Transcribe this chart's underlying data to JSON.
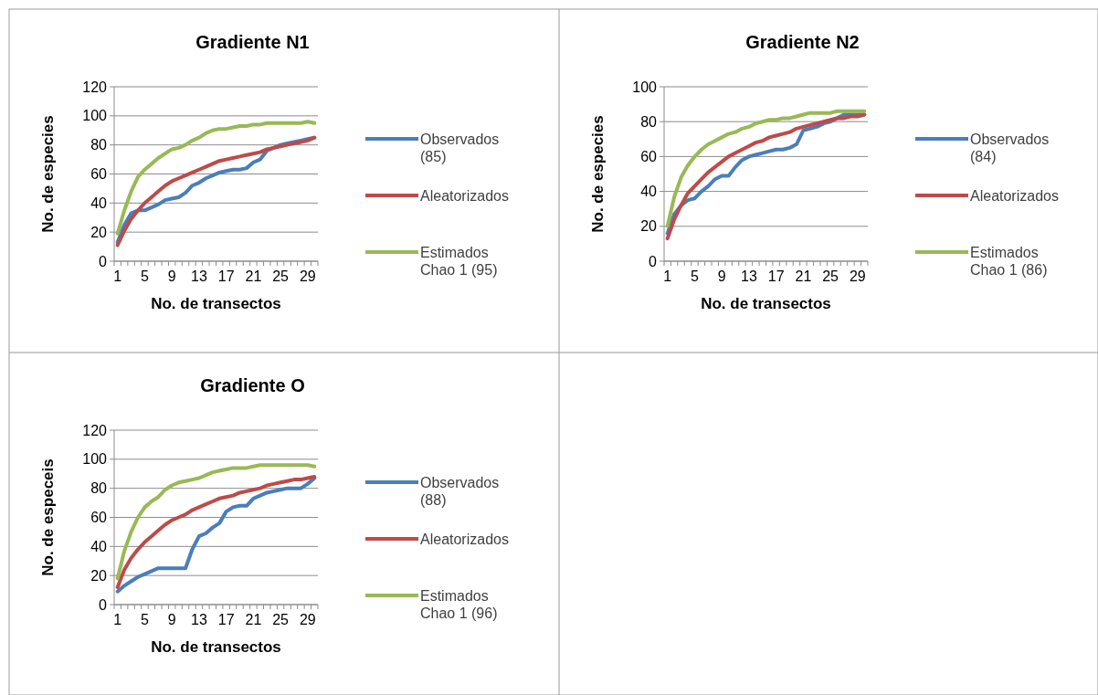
{
  "chart_data": [
    {
      "type": "line",
      "title": "Gradiente N1",
      "xlabel": "No. de transectos",
      "ylabel": "No. de especies",
      "categories": [
        "1",
        null,
        null,
        null,
        "5",
        null,
        null,
        null,
        "9",
        null,
        null,
        null,
        "13",
        null,
        null,
        null,
        "17",
        null,
        null,
        null,
        "21",
        null,
        null,
        null,
        "25",
        null,
        null,
        null,
        "29",
        null
      ],
      "ylim": [
        0,
        120
      ],
      "yticks": [
        0,
        20,
        40,
        60,
        80,
        100,
        120
      ],
      "grid": "y",
      "legend": "right",
      "marker": "none",
      "line_style": "solid",
      "series": [
        {
          "name": "Observados (85)",
          "color": "#4a7ebb",
          "values": [
            13,
            25,
            33,
            35,
            35,
            37,
            39,
            42,
            43,
            44,
            47,
            52,
            54,
            57,
            59,
            61,
            62,
            63,
            63,
            64,
            68,
            70,
            76,
            78,
            80,
            81,
            82,
            83,
            84,
            85
          ]
        },
        {
          "name": "Aleatorizados",
          "color": "#be4b48",
          "values": [
            11,
            21,
            29,
            35,
            40,
            44,
            48,
            52,
            55,
            57,
            59,
            61,
            63,
            65,
            67,
            69,
            70,
            71,
            72,
            73,
            74,
            75,
            77,
            78,
            79,
            80,
            81,
            82,
            83,
            85
          ]
        },
        {
          "name": "Estimados Chao 1 (95)",
          "color": "#98b954",
          "values": [
            19,
            35,
            48,
            58,
            63,
            67,
            71,
            74,
            77,
            78,
            80,
            83,
            85,
            88,
            90,
            91,
            91,
            92,
            93,
            93,
            94,
            94,
            95,
            95,
            95,
            95,
            95,
            95,
            96,
            95
          ]
        }
      ]
    },
    {
      "type": "line",
      "title": "Gradiente N2",
      "xlabel": "No. de transectos",
      "ylabel": "No. de especies",
      "categories": [
        "1",
        null,
        null,
        null,
        "5",
        null,
        null,
        null,
        "9",
        null,
        null,
        null,
        "13",
        null,
        null,
        null,
        "17",
        null,
        null,
        null,
        "21",
        null,
        null,
        null,
        "25",
        null,
        null,
        null,
        "29",
        null
      ],
      "ylim": [
        0,
        100
      ],
      "yticks": [
        0,
        20,
        40,
        60,
        80,
        100
      ],
      "grid": "y",
      "legend": "right",
      "marker": "none",
      "line_style": "solid",
      "series": [
        {
          "name": "Observados (84)",
          "color": "#4a7ebb",
          "values": [
            16,
            27,
            32,
            35,
            36,
            40,
            43,
            47,
            49,
            49,
            54,
            58,
            60,
            61,
            62,
            63,
            64,
            64,
            65,
            67,
            75,
            76,
            77,
            79,
            80,
            82,
            84,
            84,
            84,
            84
          ]
        },
        {
          "name": "Aleatorizados",
          "color": "#be4b48",
          "values": [
            13,
            24,
            32,
            39,
            43,
            47,
            51,
            54,
            57,
            60,
            62,
            64,
            66,
            68,
            69,
            71,
            72,
            73,
            74,
            76,
            77,
            78,
            79,
            80,
            81,
            82,
            82,
            83,
            83,
            84
          ]
        },
        {
          "name": "Estimados Chao 1 (86)",
          "color": "#98b954",
          "values": [
            20,
            37,
            48,
            55,
            60,
            64,
            67,
            69,
            71,
            73,
            74,
            76,
            77,
            79,
            80,
            81,
            81,
            82,
            82,
            83,
            84,
            85,
            85,
            85,
            85,
            86,
            86,
            86,
            86,
            86
          ]
        }
      ]
    },
    {
      "type": "line",
      "title": "Gradiente O",
      "xlabel": "No. de transectos",
      "ylabel": "No. de especeis",
      "categories": [
        "1",
        null,
        null,
        null,
        "5",
        null,
        null,
        null,
        "9",
        null,
        null,
        null,
        "13",
        null,
        null,
        null,
        "17",
        null,
        null,
        null,
        "21",
        null,
        null,
        null,
        "25",
        null,
        null,
        null,
        "29",
        null
      ],
      "ylim": [
        0,
        120
      ],
      "yticks": [
        0,
        20,
        40,
        60,
        80,
        100,
        120
      ],
      "grid": "y",
      "legend": "right",
      "marker": "none",
      "line_style": "solid",
      "series": [
        {
          "name": "Observados (88)",
          "color": "#4a7ebb",
          "values": [
            9,
            13,
            16,
            19,
            21,
            23,
            25,
            25,
            25,
            25,
            25,
            38,
            47,
            49,
            53,
            56,
            64,
            67,
            68,
            68,
            73,
            75,
            77,
            78,
            79,
            80,
            80,
            80,
            83,
            87
          ]
        },
        {
          "name": "Aleatorizados",
          "color": "#be4b48",
          "values": [
            12,
            24,
            32,
            38,
            43,
            47,
            51,
            55,
            58,
            60,
            62,
            65,
            67,
            69,
            71,
            73,
            74,
            75,
            77,
            78,
            79,
            80,
            82,
            83,
            84,
            85,
            86,
            86,
            87,
            88
          ]
        },
        {
          "name": "Estimados Chao 1 (96)",
          "color": "#98b954",
          "values": [
            18,
            37,
            50,
            60,
            67,
            71,
            74,
            79,
            82,
            84,
            85,
            86,
            87,
            89,
            91,
            92,
            93,
            94,
            94,
            94,
            95,
            96,
            96,
            96,
            96,
            96,
            96,
            96,
            96,
            95
          ]
        }
      ]
    }
  ]
}
